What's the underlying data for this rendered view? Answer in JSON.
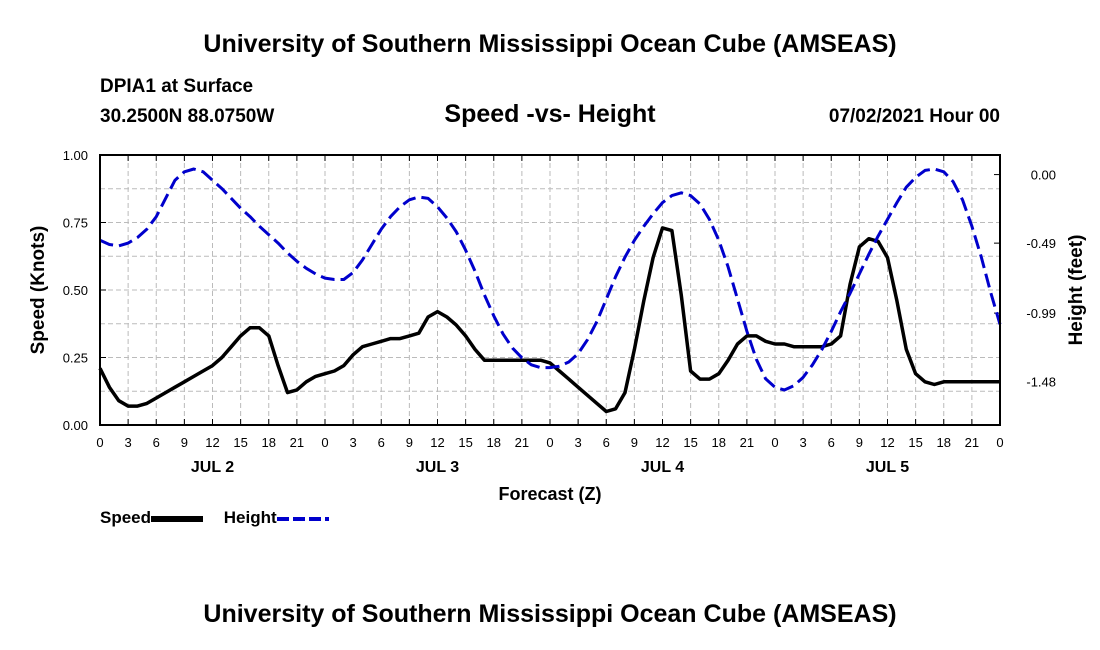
{
  "header": {
    "title": "University of Southern Mississippi Ocean Cube (AMSEAS)",
    "station": "DPIA1 at Surface",
    "coords": "30.2500N  88.0750W",
    "subtitle": "Speed -vs- Height",
    "datetime": "07/02/2021 Hour 00"
  },
  "footer": {
    "title": "University of Southern Mississippi Ocean Cube (AMSEAS)"
  },
  "legend": {
    "speed_label": "Speed",
    "height_label": "Height"
  },
  "colors": {
    "speed": "#000000",
    "height": "#0000cc",
    "grid": "#bbbbbb"
  },
  "chart_data": {
    "type": "line",
    "title": "Speed -vs- Height",
    "xlabel": "Forecast (Z)",
    "ylabel_left": "Speed (Knots)",
    "ylabel_right": "Height (feet)",
    "xlim": [
      0,
      96
    ],
    "ylim_left": [
      0,
      1
    ],
    "ylim_right": [
      -1.79,
      0.14
    ],
    "grid": true,
    "x_tick_labels": [
      "0",
      "3",
      "6",
      "9",
      "12",
      "15",
      "18",
      "21",
      "0",
      "3",
      "6",
      "9",
      "12",
      "15",
      "18",
      "21",
      "0",
      "3",
      "6",
      "9",
      "12",
      "15",
      "18",
      "21",
      "0",
      "3",
      "6",
      "9",
      "12",
      "15",
      "18",
      "21",
      "0"
    ],
    "day_labels": [
      {
        "label": "JUL 2",
        "x": 12
      },
      {
        "label": "JUL 3",
        "x": 36
      },
      {
        "label": "JUL 4",
        "x": 60
      },
      {
        "label": "JUL 5",
        "x": 84
      }
    ],
    "y_left_ticks": [
      "0.00",
      "0.25",
      "0.50",
      "0.75",
      "1.00"
    ],
    "y_left_tick_values": [
      0,
      0.25,
      0.5,
      0.75,
      1.0
    ],
    "y_right_ticks": [
      "0.00",
      "-0.49",
      "-0.99",
      "-1.48"
    ],
    "y_right_tick_values": [
      0.0,
      -0.49,
      -0.99,
      -1.48
    ],
    "series": [
      {
        "name": "Speed",
        "axis": "left",
        "style": "solid",
        "x": [
          0,
          1,
          2,
          3,
          4,
          5,
          6,
          7,
          8,
          9,
          10,
          11,
          12,
          13,
          14,
          15,
          16,
          17,
          18,
          19,
          20,
          21,
          22,
          23,
          24,
          25,
          26,
          27,
          28,
          29,
          30,
          31,
          32,
          33,
          34,
          35,
          36,
          37,
          38,
          39,
          40,
          41,
          42,
          43,
          44,
          45,
          46,
          47,
          48,
          49,
          50,
          51,
          52,
          53,
          54,
          55,
          56,
          57,
          58,
          59,
          60,
          61,
          62,
          63,
          64,
          65,
          66,
          67,
          68,
          69,
          70,
          71,
          72,
          73,
          74,
          75,
          76,
          77,
          78,
          79,
          80,
          81,
          82,
          83,
          84,
          85,
          86,
          87,
          88,
          89,
          90,
          91,
          92,
          93,
          94,
          95,
          96
        ],
        "values": [
          0.21,
          0.14,
          0.09,
          0.07,
          0.07,
          0.08,
          0.1,
          0.12,
          0.14,
          0.16,
          0.18,
          0.2,
          0.22,
          0.25,
          0.29,
          0.33,
          0.36,
          0.36,
          0.33,
          0.22,
          0.12,
          0.13,
          0.16,
          0.18,
          0.19,
          0.2,
          0.22,
          0.26,
          0.29,
          0.3,
          0.31,
          0.32,
          0.32,
          0.33,
          0.34,
          0.4,
          0.42,
          0.4,
          0.37,
          0.33,
          0.28,
          0.24,
          0.24,
          0.24,
          0.24,
          0.24,
          0.24,
          0.24,
          0.23,
          0.2,
          0.17,
          0.14,
          0.11,
          0.08,
          0.05,
          0.06,
          0.12,
          0.28,
          0.46,
          0.62,
          0.73,
          0.72,
          0.48,
          0.2,
          0.17,
          0.17,
          0.19,
          0.24,
          0.3,
          0.33,
          0.33,
          0.31,
          0.3,
          0.3,
          0.29,
          0.29,
          0.29,
          0.29,
          0.3,
          0.33,
          0.52,
          0.66,
          0.69,
          0.68,
          0.62,
          0.46,
          0.28,
          0.19,
          0.16,
          0.15,
          0.16,
          0.16,
          0.16,
          0.16,
          0.16,
          0.16,
          0.16
        ]
      },
      {
        "name": "Height",
        "axis": "right",
        "style": "dashed",
        "x": [
          0,
          1,
          2,
          3,
          4,
          5,
          6,
          7,
          8,
          9,
          10,
          11,
          12,
          13,
          14,
          15,
          16,
          17,
          18,
          19,
          20,
          21,
          22,
          23,
          24,
          25,
          26,
          27,
          28,
          29,
          30,
          31,
          32,
          33,
          34,
          35,
          36,
          37,
          38,
          39,
          40,
          41,
          42,
          43,
          44,
          45,
          46,
          47,
          48,
          49,
          50,
          51,
          52,
          53,
          54,
          55,
          56,
          57,
          58,
          59,
          60,
          61,
          62,
          63,
          64,
          65,
          66,
          67,
          68,
          69,
          70,
          71,
          72,
          73,
          74,
          75,
          76,
          77,
          78,
          79,
          80,
          81,
          82,
          83,
          84,
          85,
          86,
          87,
          88,
          89,
          90,
          91,
          92,
          93,
          94,
          95,
          96
        ],
        "values": [
          -0.47,
          -0.5,
          -0.51,
          -0.49,
          -0.45,
          -0.39,
          -0.3,
          -0.17,
          -0.04,
          0.02,
          0.04,
          0.02,
          -0.04,
          -0.1,
          -0.17,
          -0.24,
          -0.3,
          -0.37,
          -0.43,
          -0.49,
          -0.56,
          -0.62,
          -0.67,
          -0.71,
          -0.74,
          -0.75,
          -0.75,
          -0.7,
          -0.61,
          -0.5,
          -0.39,
          -0.3,
          -0.23,
          -0.18,
          -0.16,
          -0.17,
          -0.23,
          -0.31,
          -0.41,
          -0.54,
          -0.69,
          -0.86,
          -1.01,
          -1.14,
          -1.24,
          -1.31,
          -1.36,
          -1.38,
          -1.38,
          -1.37,
          -1.34,
          -1.28,
          -1.18,
          -1.05,
          -0.89,
          -0.73,
          -0.59,
          -0.47,
          -0.37,
          -0.28,
          -0.2,
          -0.15,
          -0.13,
          -0.15,
          -0.21,
          -0.32,
          -0.47,
          -0.66,
          -0.89,
          -1.12,
          -1.32,
          -1.46,
          -1.52,
          -1.54,
          -1.51,
          -1.45,
          -1.36,
          -1.25,
          -1.12,
          -0.98,
          -0.85,
          -0.71,
          -0.57,
          -0.44,
          -0.32,
          -0.2,
          -0.09,
          -0.02,
          0.03,
          0.04,
          0.02,
          -0.05,
          -0.18,
          -0.37,
          -0.59,
          -0.84,
          -1.07
        ]
      }
    ]
  }
}
